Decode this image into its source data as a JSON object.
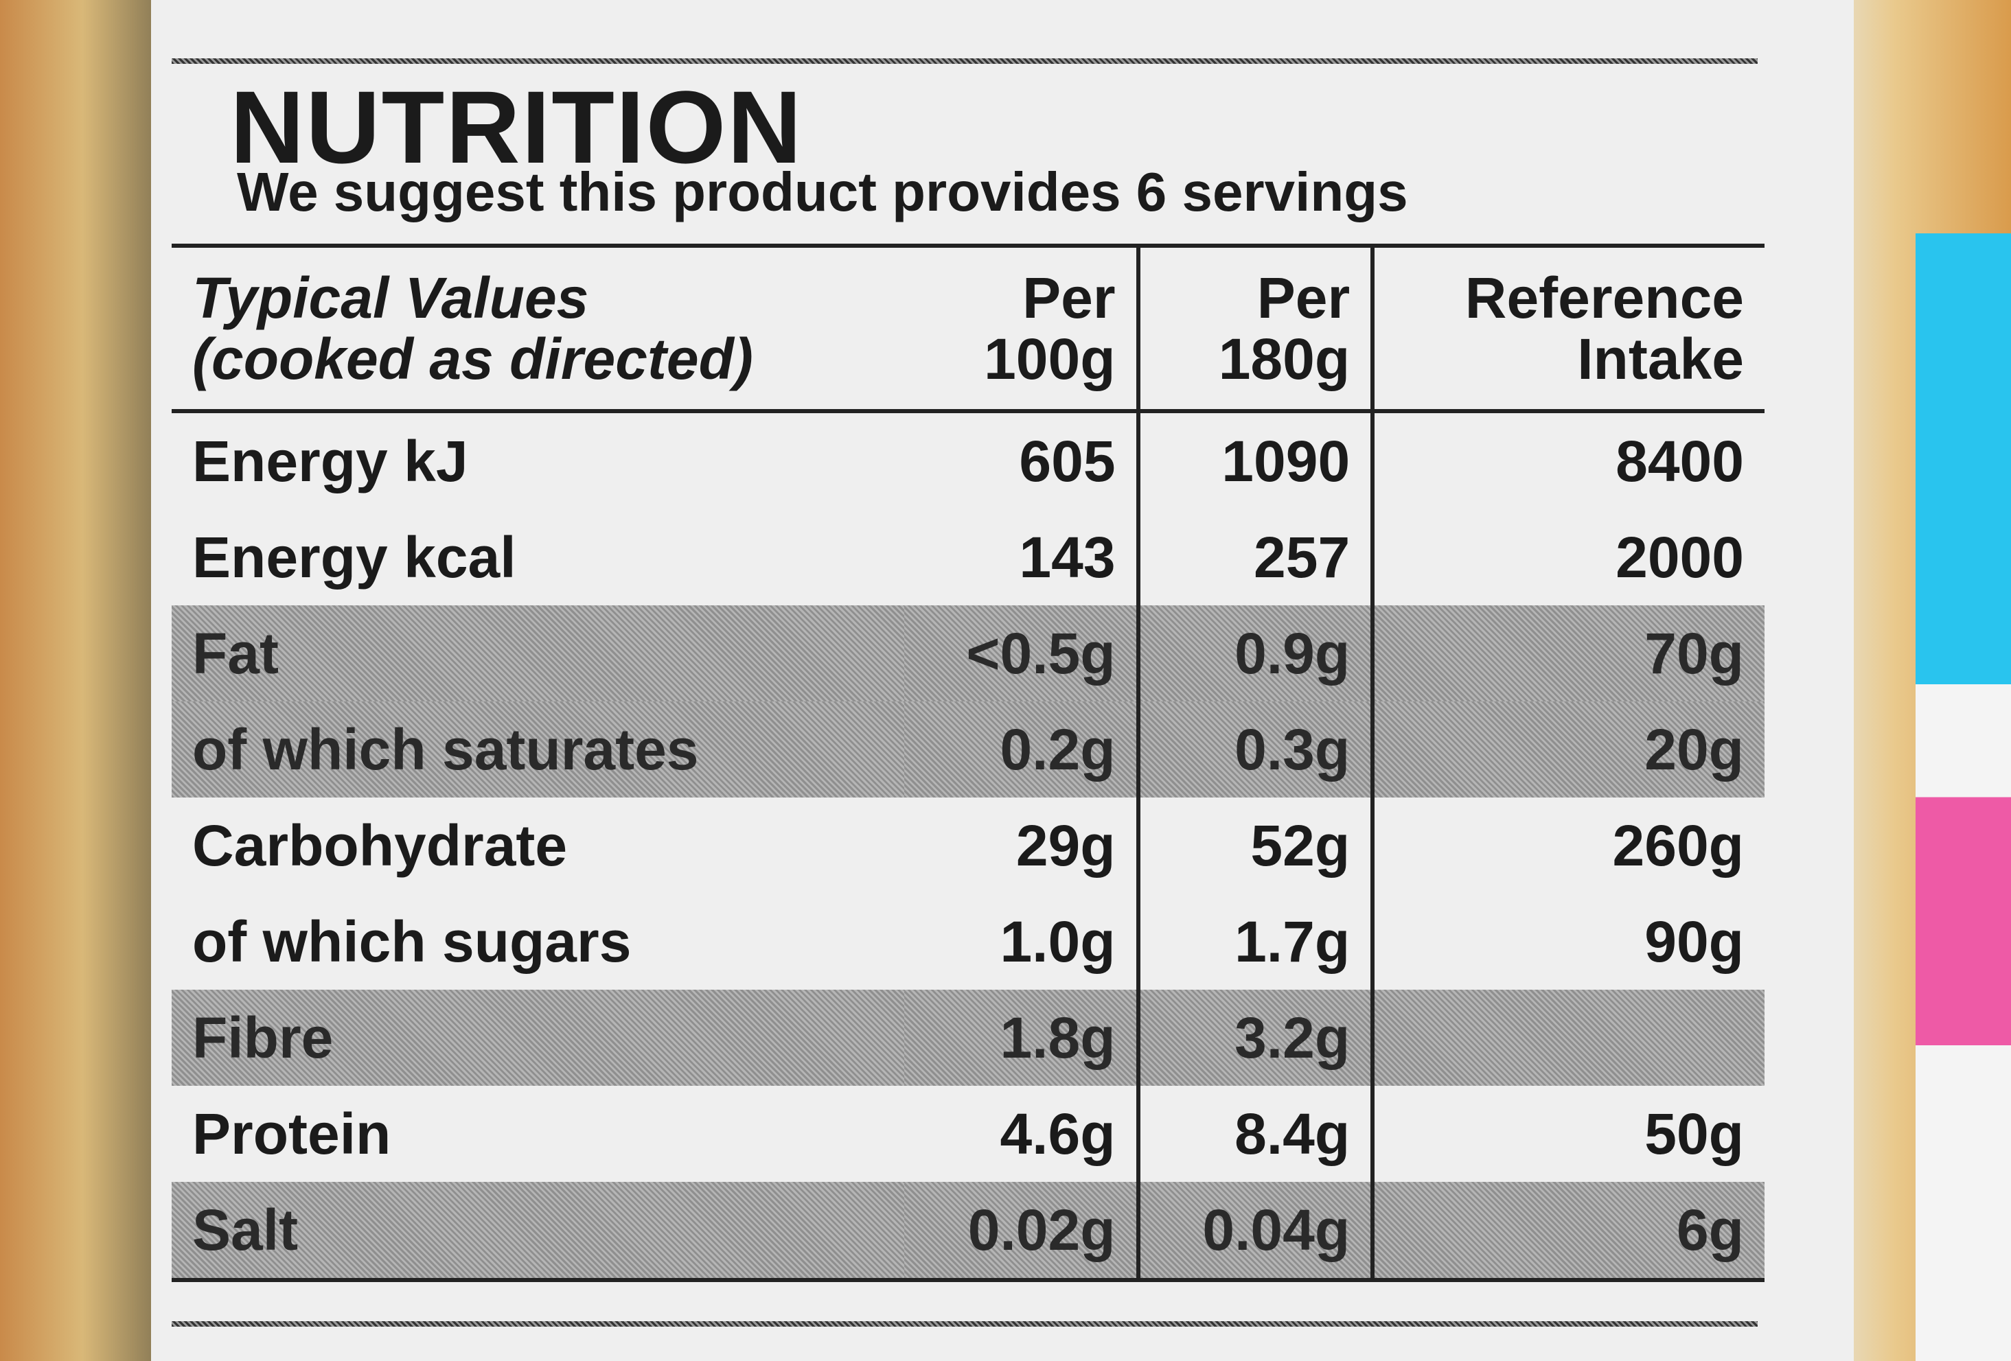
{
  "header": {
    "title": "NUTRITION",
    "subtitle": "We suggest this product provides 6 servings"
  },
  "table": {
    "columns": [
      [
        "Typical Values",
        "(cooked as directed)"
      ],
      [
        "Per",
        "100g"
      ],
      [
        "Per",
        "180g"
      ],
      [
        "Reference",
        "Intake"
      ]
    ],
    "rows": [
      {
        "label": "Energy kJ",
        "values": [
          "605",
          "1090",
          "8400"
        ],
        "shaded": false
      },
      {
        "label": "Energy kcal",
        "values": [
          "143",
          "257",
          "2000"
        ],
        "shaded": false
      },
      {
        "label": "Fat",
        "values": [
          "<0.5g",
          "0.9g",
          "70g"
        ],
        "shaded": true
      },
      {
        "label": "of which saturates",
        "values": [
          "0.2g",
          "0.3g",
          "20g"
        ],
        "shaded": true
      },
      {
        "label": "Carbohydrate",
        "values": [
          "29g",
          "52g",
          "260g"
        ],
        "shaded": false
      },
      {
        "label": "of which sugars",
        "values": [
          "1.0g",
          "1.7g",
          "90g"
        ],
        "shaded": false
      },
      {
        "label": "Fibre",
        "values": [
          "1.8g",
          "3.2g",
          null
        ],
        "shaded": true
      },
      {
        "label": "Protein",
        "values": [
          "4.6g",
          "8.4g",
          "50g"
        ],
        "shaded": false
      },
      {
        "label": "Salt",
        "values": [
          "0.02g",
          "0.04g",
          "6g"
        ],
        "shaded": true
      }
    ]
  }
}
